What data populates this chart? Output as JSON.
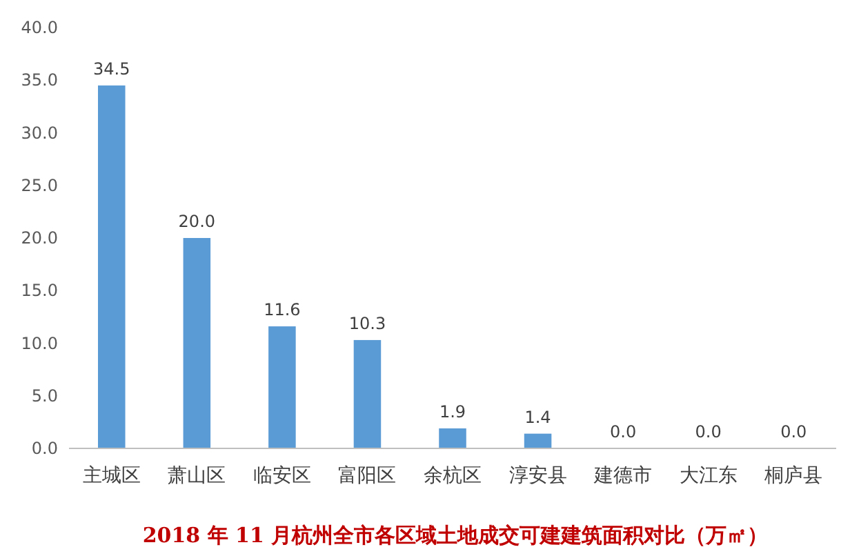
{
  "chart_data": {
    "type": "bar",
    "title": "2018 年 11 月杭州全市各区域土地成交可建建筑面积对比（万㎡）",
    "categories": [
      "主城区",
      "萧山区",
      "临安区",
      "富阳区",
      "余杭区",
      "淳安县",
      "建德市",
      "大江东",
      "桐庐县"
    ],
    "values": [
      34.5,
      20.0,
      11.6,
      10.3,
      1.9,
      1.4,
      0.0,
      0.0,
      0.0
    ],
    "value_labels": [
      "34.5",
      "20.0",
      "11.6",
      "10.3",
      "1.9",
      "1.4",
      "0.0",
      "0.0",
      "0.0"
    ],
    "color": "#5b9bd5",
    "ylim": [
      0,
      40
    ],
    "yticks": [
      {
        "value": 0,
        "label": "0.0"
      },
      {
        "value": 5,
        "label": "5.0"
      },
      {
        "value": 10,
        "label": "10.0"
      },
      {
        "value": 15,
        "label": "15.0"
      },
      {
        "value": 20,
        "label": "20.0"
      },
      {
        "value": 25,
        "label": "25.0"
      },
      {
        "value": 30,
        "label": "30.0"
      },
      {
        "value": 35,
        "label": "35.0"
      },
      {
        "value": 40,
        "label": "40.0"
      }
    ],
    "grid": false
  }
}
